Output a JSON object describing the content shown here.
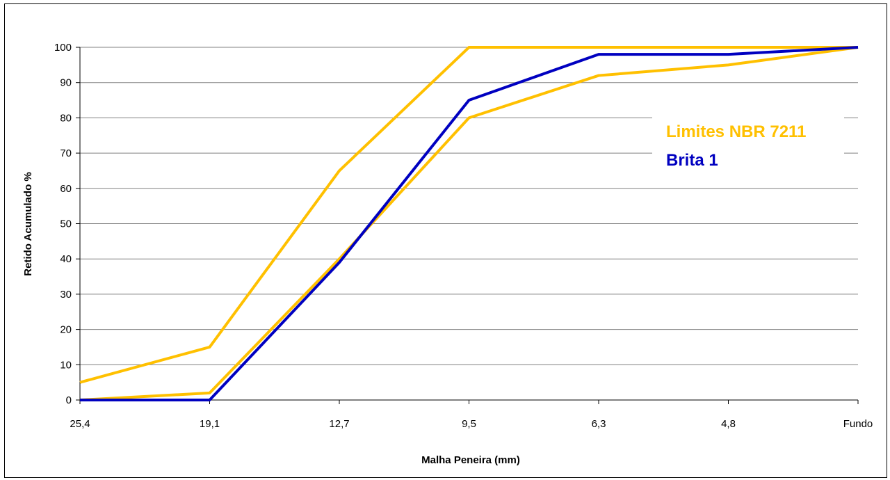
{
  "chart_data": {
    "type": "line",
    "categories": [
      "25,4",
      "19,1",
      "12,7",
      "9,5",
      "6,3",
      "4,8",
      "Fundo"
    ],
    "series": [
      {
        "name": "Limites NBR 7211",
        "role": "upper-limit",
        "color": "#ffc000",
        "values": [
          5,
          15,
          65,
          100,
          100,
          100,
          100
        ]
      },
      {
        "name": "Limites NBR 7211",
        "role": "lower-limit",
        "color": "#ffc000",
        "values": [
          0,
          2,
          40,
          80,
          92,
          95,
          100
        ]
      },
      {
        "name": "Brita 1",
        "role": "sample",
        "color": "#0000c0",
        "values": [
          0,
          0,
          39,
          85,
          98,
          98,
          100
        ]
      }
    ],
    "xlabel": "Malha Peneira (mm)",
    "ylabel": "Retido Acumulado %",
    "ylim": [
      0,
      100
    ],
    "yticks": [
      0,
      10,
      20,
      30,
      40,
      50,
      60,
      70,
      80,
      90,
      100
    ],
    "grid": true,
    "legend": {
      "position": "right",
      "entries": [
        {
          "label": "Limites NBR 7211",
          "color": "#ffc000"
        },
        {
          "label": "Brita 1",
          "color": "#0000c0"
        }
      ]
    }
  }
}
